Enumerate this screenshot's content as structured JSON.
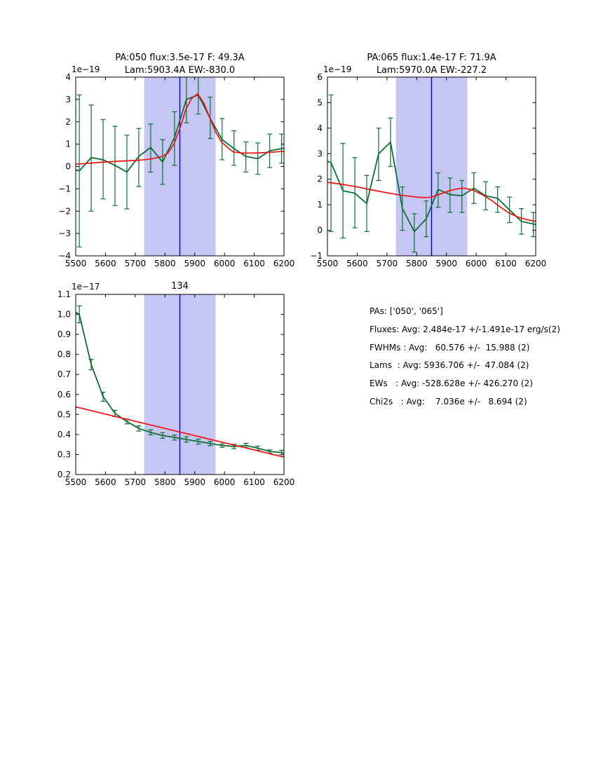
{
  "figure": {
    "background": "#ffffff"
  },
  "colors": {
    "data_green": "#0a7033",
    "fit_red": "#ee1111",
    "vline_blue": "#0000cd",
    "span_lavender": "#c6c6f4",
    "axis_black": "#000000"
  },
  "stats": {
    "lines": [
      "PAs: ['050', '065']",
      "Fluxes: Avg: 2.484e-17 +/-1.491e-17 erg/s(2)",
      "FWHMs : Avg:   60.576 +/-  15.988 (2)",
      "Lams  : Avg: 5936.706 +/-  47.084 (2)",
      "EWs   : Avg: -528.628e +/- 426.270 (2)",
      "Chi2s   : Avg:    7.036e +/-   8.694 (2)"
    ]
  },
  "chart_data": [
    {
      "type": "line",
      "title_lines": [
        "PA:050 flux:3.5e-17 F: 49.3A",
        "Lam:5903.4A EW:-830.0"
      ],
      "offset_label": "1e−19",
      "xlim": [
        5500,
        6200
      ],
      "ylim": [
        -4,
        4
      ],
      "x_ticks": [
        5500,
        5600,
        5700,
        5800,
        5900,
        6000,
        6100,
        6200
      ],
      "y_ticks": [
        -4,
        -3,
        -2,
        -1,
        0,
        1,
        2,
        3,
        4
      ],
      "y_tick_labels": [
        "−4",
        "−3",
        "−2",
        "−1",
        "0",
        "1",
        "2",
        "3",
        "4"
      ],
      "span": [
        5730,
        5970
      ],
      "vline": 5850,
      "errorbars": {
        "x": [
          5512,
          5552,
          5592,
          5632,
          5672,
          5712,
          5752,
          5792,
          5832,
          5872,
          5912,
          5952,
          5992,
          6032,
          6072,
          6112,
          6152,
          6192
        ],
        "y": [
          -0.2,
          0.4,
          0.3,
          0.05,
          -0.25,
          0.45,
          0.85,
          0.2,
          1.3,
          3.0,
          3.2,
          2.15,
          1.2,
          0.8,
          0.45,
          0.35,
          0.7,
          0.8
        ],
        "lo": [
          -3.6,
          -2.0,
          -1.45,
          -1.75,
          -1.9,
          -0.9,
          -0.25,
          -0.8,
          0.05,
          1.95,
          2.35,
          1.25,
          0.3,
          0.05,
          -0.25,
          -0.35,
          -0.05,
          0.15
        ],
        "hi": [
          3.2,
          2.75,
          2.1,
          1.8,
          1.4,
          1.7,
          1.9,
          1.2,
          2.45,
          4.05,
          4.1,
          3.1,
          2.15,
          1.6,
          1.1,
          1.05,
          1.45,
          1.45
        ]
      },
      "data_line": {
        "x": [
          5500,
          5512,
          5552,
          5592,
          5632,
          5672,
          5712,
          5752,
          5792,
          5832,
          5872,
          5912,
          5952,
          5992,
          6032,
          6072,
          6112,
          6152,
          6192,
          6200
        ],
        "y": [
          -0.15,
          -0.2,
          0.4,
          0.3,
          0.05,
          -0.25,
          0.45,
          0.85,
          0.2,
          1.3,
          3.0,
          3.2,
          2.15,
          1.2,
          0.8,
          0.45,
          0.35,
          0.7,
          0.8,
          0.82
        ]
      },
      "fit_line": {
        "x": [
          5500,
          5550,
          5600,
          5650,
          5700,
          5730,
          5760,
          5790,
          5810,
          5830,
          5850,
          5870,
          5890,
          5910,
          5930,
          5950,
          5970,
          5990,
          6010,
          6030,
          6060,
          6100,
          6150,
          6200
        ],
        "y": [
          0.1,
          0.15,
          0.2,
          0.24,
          0.27,
          0.3,
          0.35,
          0.45,
          0.6,
          1.0,
          1.7,
          2.55,
          3.05,
          3.25,
          2.85,
          2.2,
          1.55,
          1.1,
          0.85,
          0.65,
          0.6,
          0.6,
          0.63,
          0.68
        ]
      }
    },
    {
      "type": "line",
      "title_lines": [
        "PA:065 flux:1.4e-17 F: 71.9A",
        "Lam:5970.0A EW:-227.2"
      ],
      "offset_label": "1e−19",
      "xlim": [
        5500,
        6200
      ],
      "ylim": [
        -1,
        6
      ],
      "x_ticks": [
        5500,
        5600,
        5700,
        5800,
        5900,
        6000,
        6100,
        6200
      ],
      "y_ticks": [
        -1,
        0,
        1,
        2,
        3,
        4,
        5,
        6
      ],
      "y_tick_labels": [
        "−1",
        "0",
        "1",
        "2",
        "3",
        "4",
        "5",
        "6"
      ],
      "span": [
        5730,
        5970
      ],
      "vline": 5850,
      "errorbars": {
        "x": [
          5512,
          5552,
          5592,
          5632,
          5672,
          5712,
          5752,
          5792,
          5832,
          5872,
          5912,
          5952,
          5992,
          6032,
          6072,
          6112,
          6152,
          6192
        ],
        "y": [
          2.65,
          1.55,
          1.45,
          1.05,
          3.0,
          3.45,
          0.85,
          -0.05,
          0.45,
          1.6,
          1.4,
          1.35,
          1.65,
          1.35,
          1.25,
          0.8,
          0.35,
          0.25
        ],
        "lo": [
          -0.05,
          -0.3,
          0.1,
          -0.05,
          1.95,
          2.5,
          0.0,
          -0.85,
          -0.25,
          0.9,
          0.7,
          0.7,
          1.05,
          0.8,
          0.7,
          0.3,
          -0.15,
          -0.25
        ],
        "hi": [
          5.3,
          3.4,
          2.85,
          2.15,
          4.0,
          4.4,
          1.7,
          0.65,
          1.15,
          2.25,
          2.05,
          1.95,
          2.25,
          1.9,
          1.7,
          1.3,
          0.85,
          0.7
        ]
      },
      "data_line": {
        "x": [
          5500,
          5512,
          5552,
          5592,
          5632,
          5672,
          5712,
          5752,
          5792,
          5832,
          5872,
          5912,
          5952,
          5992,
          6032,
          6072,
          6112,
          6152,
          6192,
          6200
        ],
        "y": [
          2.7,
          2.65,
          1.55,
          1.45,
          1.05,
          3.0,
          3.45,
          0.85,
          -0.05,
          0.45,
          1.6,
          1.4,
          1.35,
          1.65,
          1.35,
          1.25,
          0.8,
          0.35,
          0.25,
          0.22
        ]
      },
      "fit_line": {
        "x": [
          5500,
          5550,
          5600,
          5650,
          5700,
          5750,
          5800,
          5830,
          5850,
          5880,
          5910,
          5940,
          5960,
          5990,
          6020,
          6050,
          6080,
          6110,
          6140,
          6170,
          6200
        ],
        "y": [
          1.88,
          1.8,
          1.7,
          1.58,
          1.47,
          1.37,
          1.3,
          1.28,
          1.3,
          1.42,
          1.55,
          1.63,
          1.65,
          1.57,
          1.4,
          1.18,
          0.92,
          0.68,
          0.52,
          0.42,
          0.35
        ]
      }
    },
    {
      "type": "line",
      "title_lines": [
        "134"
      ],
      "offset_label": "1e−17",
      "xlim": [
        5500,
        6200
      ],
      "ylim": [
        0.2,
        1.1
      ],
      "x_ticks": [
        5500,
        5600,
        5700,
        5800,
        5900,
        6000,
        6100,
        6200
      ],
      "y_ticks": [
        0.2,
        0.3,
        0.4,
        0.5,
        0.6,
        0.7,
        0.8,
        0.9,
        1.0,
        1.1
      ],
      "y_tick_labels": [
        "0.2",
        "0.3",
        "0.4",
        "0.5",
        "0.6",
        "0.7",
        "0.8",
        "0.9",
        "1.0",
        "1.1"
      ],
      "span": [
        5730,
        5970
      ],
      "vline": 5850,
      "errorbars": {
        "x": [
          5512,
          5552,
          5592,
          5632,
          5672,
          5712,
          5752,
          5792,
          5832,
          5872,
          5912,
          5952,
          5992,
          6032,
          6072,
          6112,
          6152,
          6192
        ],
        "y": [
          1.0,
          0.75,
          0.59,
          0.505,
          0.465,
          0.43,
          0.41,
          0.395,
          0.385,
          0.375,
          0.365,
          0.355,
          0.345,
          0.34,
          0.345,
          0.332,
          0.315,
          0.31
        ],
        "lo": [
          0.958,
          0.723,
          0.566,
          0.489,
          0.453,
          0.417,
          0.398,
          0.381,
          0.372,
          0.362,
          0.352,
          0.344,
          0.336,
          0.329,
          0.334,
          0.321,
          0.306,
          0.299
        ],
        "hi": [
          1.043,
          0.776,
          0.611,
          0.521,
          0.477,
          0.443,
          0.423,
          0.409,
          0.397,
          0.389,
          0.377,
          0.366,
          0.353,
          0.351,
          0.356,
          0.342,
          0.323,
          0.321
        ]
      },
      "data_line": {
        "x": [
          5500,
          5512,
          5552,
          5592,
          5632,
          5672,
          5712,
          5752,
          5792,
          5832,
          5872,
          5912,
          5952,
          5992,
          6032,
          6072,
          6112,
          6152,
          6192,
          6200
        ],
        "y": [
          1.01,
          1.0,
          0.75,
          0.59,
          0.505,
          0.465,
          0.43,
          0.41,
          0.395,
          0.385,
          0.375,
          0.365,
          0.355,
          0.345,
          0.34,
          0.345,
          0.332,
          0.315,
          0.31,
          0.309
        ]
      },
      "fit_line": {
        "x": [
          5500,
          6200
        ],
        "y": [
          0.538,
          0.287
        ]
      }
    }
  ]
}
